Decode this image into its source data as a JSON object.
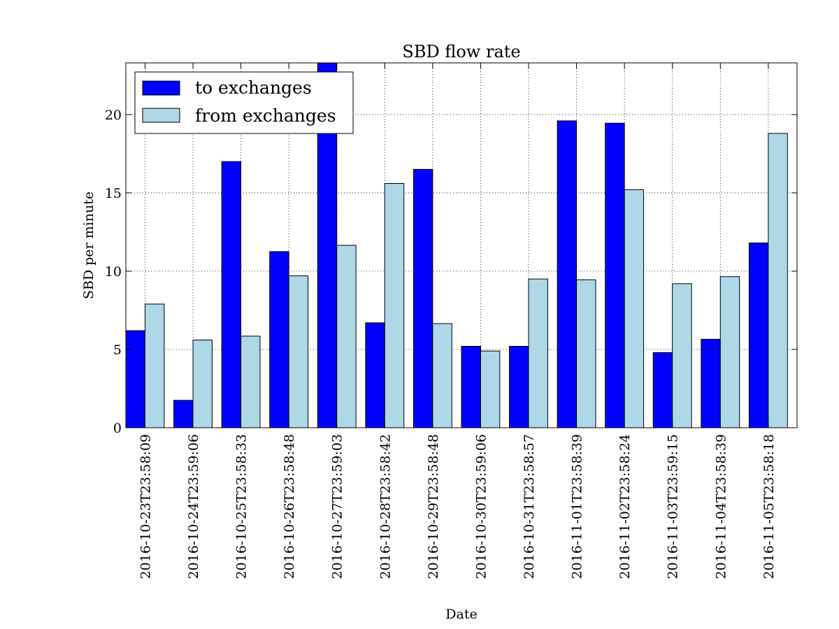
{
  "chart_data": {
    "type": "bar",
    "title": "SBD flow rate",
    "xlabel": "Date",
    "ylabel": "SBD per minute",
    "ylim": [
      0,
      23.3
    ],
    "yticks": [
      0,
      5,
      10,
      15,
      20
    ],
    "grid": true,
    "legend_position": "top-left",
    "categories": [
      "2016-10-23T23:58:09",
      "2016-10-24T23:59:06",
      "2016-10-25T23:58:33",
      "2016-10-26T23:58:48",
      "2016-10-27T23:59:03",
      "2016-10-28T23:58:42",
      "2016-10-29T23:58:48",
      "2016-10-30T23:59:06",
      "2016-10-31T23:58:57",
      "2016-11-01T23:58:39",
      "2016-11-02T23:58:24",
      "2016-11-03T23:59:15",
      "2016-11-04T23:58:39",
      "2016-11-05T23:58:18"
    ],
    "series": [
      {
        "name": "to exchanges",
        "color": "#0000ff",
        "values": [
          6.2,
          1.75,
          17.0,
          11.25,
          23.5,
          6.7,
          16.5,
          5.2,
          5.2,
          19.6,
          19.45,
          4.8,
          5.65,
          11.8
        ]
      },
      {
        "name": "from exchanges",
        "color": "#add8e6",
        "values": [
          7.9,
          5.6,
          5.85,
          9.7,
          11.65,
          15.6,
          6.65,
          4.9,
          9.5,
          9.45,
          15.2,
          9.2,
          9.65,
          18.8
        ]
      }
    ]
  }
}
